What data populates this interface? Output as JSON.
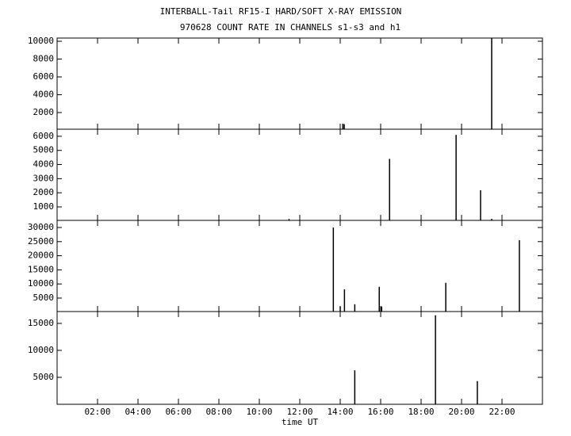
{
  "chart_data": [
    {
      "type": "bar",
      "title": "INTERBALL-Tail RF15-I HARD/SOFT X-RAY EMISSION",
      "subtitle": "970628  COUNT RATE IN CHANNELS s1-s3 and h1",
      "x": [
        14.13,
        14.2,
        21.49
      ],
      "values": [
        750,
        700,
        10350
      ],
      "color": "#000000",
      "xlim": [
        0,
        24
      ],
      "ylim": [
        130,
        10360
      ],
      "yticks": [
        2000,
        4000,
        6000,
        8000,
        10000
      ]
    },
    {
      "type": "bar",
      "x": [
        11.47,
        16.44,
        19.73,
        20.94,
        21.49
      ],
      "values": [
        150,
        4400,
        6100,
        2180,
        150
      ],
      "color": "#000000",
      "xlim": [
        0,
        24
      ],
      "ylim": [
        45,
        6500
      ],
      "yticks": [
        1000,
        2000,
        3000,
        4000,
        5000,
        6000
      ]
    },
    {
      "type": "bar",
      "x": [
        13.66,
        14.0,
        14.21,
        14.72,
        15.93,
        16.05,
        19.22,
        22.86
      ],
      "values": [
        30000,
        2000,
        8100,
        2800,
        9000,
        2000,
        10400,
        25500
      ],
      "color": "#000000",
      "xlim": [
        0,
        24
      ],
      "ylim": [
        225,
        32530
      ],
      "yticks": [
        5000,
        10000,
        15000,
        20000,
        25000,
        30000
      ]
    },
    {
      "type": "bar",
      "x": [
        14.72,
        18.71,
        20.78
      ],
      "values": [
        6300,
        16500,
        4300
      ],
      "color": "#000000",
      "xlim": [
        0,
        24
      ],
      "ylim": [
        0,
        17200
      ],
      "yticks": [
        5000,
        10000,
        15000
      ],
      "xticks": [
        {
          "value": 2,
          "label": "02:00"
        },
        {
          "value": 4,
          "label": "04:00"
        },
        {
          "value": 6,
          "label": "06:00"
        },
        {
          "value": 8,
          "label": "08:00"
        },
        {
          "value": 10,
          "label": "10:00"
        },
        {
          "value": 12,
          "label": "12:00"
        },
        {
          "value": 14,
          "label": "14:00"
        },
        {
          "value": 16,
          "label": "16:00"
        },
        {
          "value": 18,
          "label": "18:00"
        },
        {
          "value": 20,
          "label": "20:00"
        },
        {
          "value": 22,
          "label": "22:00"
        }
      ],
      "xlabel": "time UT"
    }
  ]
}
